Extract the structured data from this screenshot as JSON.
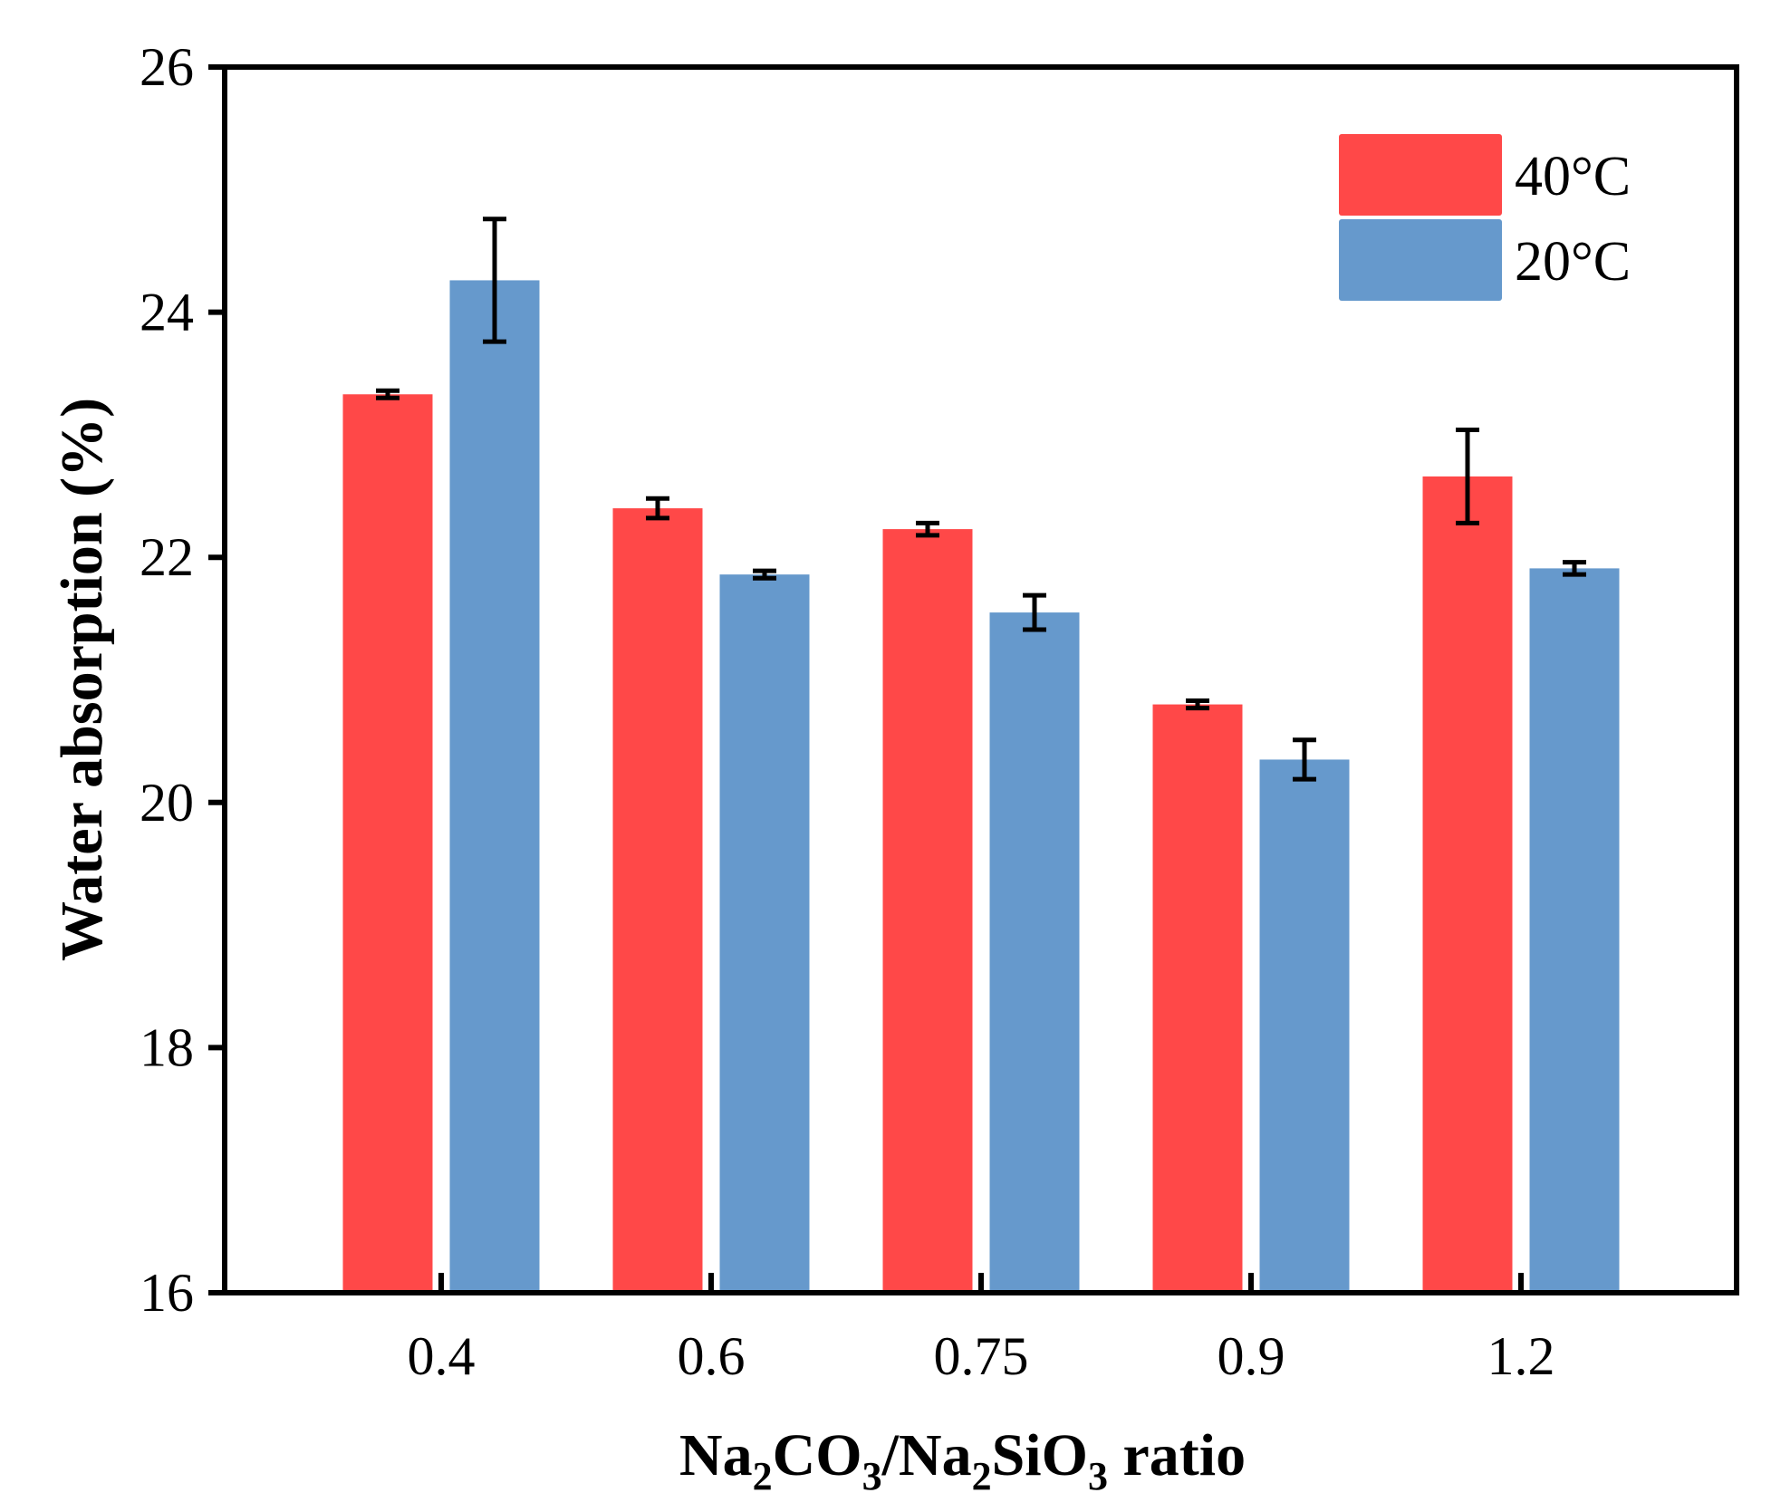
{
  "chart_data": {
    "type": "bar",
    "title": "",
    "xlabel": "Na2CO3/Na2SiO3 ratio",
    "xlabel_parts": [
      "Na",
      "2",
      "CO",
      "3",
      "/Na",
      "2",
      "SiO",
      "3",
      " ratio"
    ],
    "ylabel": "Water absorption (%)",
    "ylim": [
      16,
      26
    ],
    "yticks": [
      "16",
      "18",
      "20",
      "22",
      "24",
      "26"
    ],
    "categories": [
      "0.4",
      "0.6",
      "0.75",
      "0.9",
      "1.2"
    ],
    "series": [
      {
        "name": "40°C",
        "color": "#ff4848",
        "values": [
          23.33,
          22.4,
          22.23,
          20.8,
          22.66
        ],
        "errors": [
          0.03,
          0.08,
          0.05,
          0.03,
          0.38
        ]
      },
      {
        "name": "20°C",
        "color": "#6699cc",
        "values": [
          24.26,
          21.86,
          21.55,
          20.35,
          21.91
        ],
        "errors": [
          0.5,
          0.03,
          0.14,
          0.16,
          0.05
        ]
      }
    ],
    "legend_position": "top-right"
  }
}
